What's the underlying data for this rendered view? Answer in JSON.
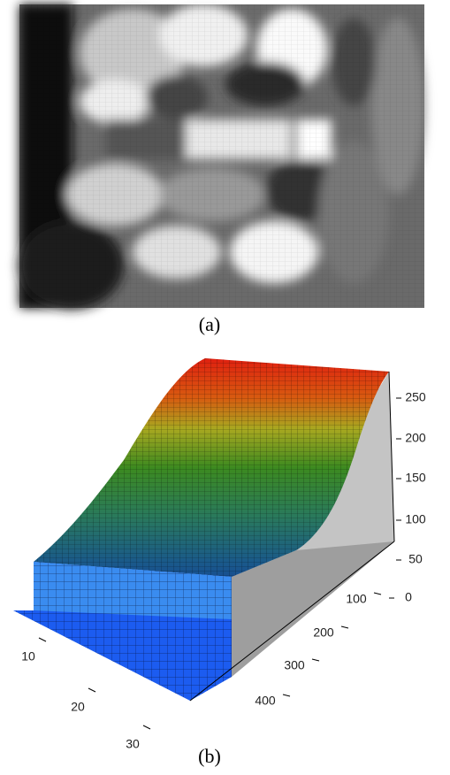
{
  "figure_a": {
    "caption": "(a)"
  },
  "figure_b": {
    "caption": "(b)",
    "z_ticks": [
      50,
      100,
      150,
      200,
      250,
      0
    ],
    "y_ticks": [
      100,
      200,
      300,
      400
    ],
    "x_ticks": [
      10,
      20,
      30
    ]
  }
}
